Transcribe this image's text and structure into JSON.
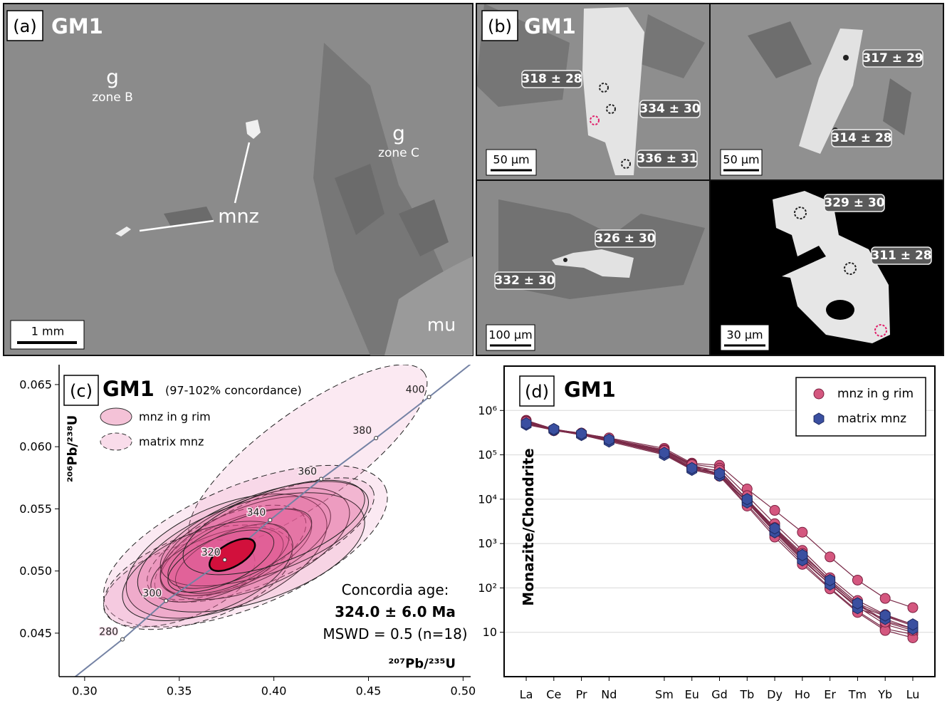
{
  "panel_a": {
    "label": "(a)",
    "sample": "GM1",
    "annotations": [
      "g",
      "zone B",
      "g",
      "zone C",
      "mnz",
      "mu"
    ],
    "scale_bar": "1 mm"
  },
  "panel_b": {
    "label": "(b)",
    "sample": "GM1",
    "images": [
      {
        "ages": [
          "318 ± 28",
          "334 ± 30",
          "336 ± 31"
        ],
        "scale_bar": "50 µm"
      },
      {
        "ages": [
          "317 ± 29",
          "314 ± 28"
        ],
        "scale_bar": "50 µm"
      },
      {
        "ages": [
          "326 ± 30",
          "332 ± 30"
        ],
        "scale_bar": "100 µm"
      },
      {
        "ages": [
          "329 ± 30",
          "311 ± 28"
        ],
        "scale_bar": "30 µm"
      }
    ]
  },
  "chart_data": [
    {
      "type": "concordia",
      "panel_label": "(c)",
      "title": "GM1",
      "subtitle": "(97-102% concordance)",
      "x_label": "²⁰⁷Pb/²³⁵U",
      "y_label": "²⁰⁶Pb/²³⁸U",
      "xlim": [
        0.2865,
        0.504
      ],
      "ylim": [
        0.0415,
        0.0666
      ],
      "xticks": [
        {
          "value": 0.3,
          "label": "0.30"
        },
        {
          "value": 0.35,
          "label": "0.35"
        },
        {
          "value": 0.4,
          "label": "0.40"
        },
        {
          "value": 0.45,
          "label": "0.45"
        },
        {
          "value": 0.5,
          "label": "0.50"
        }
      ],
      "yticks": [
        0.045,
        {
          "value": 0.05,
          "label": "0.050"
        },
        {
          "value": 0.055,
          "label": "0.055"
        },
        {
          "value": 0.06,
          "label": "0.060"
        },
        0.065
      ],
      "legend": "upper left",
      "series": [
        {
          "name": "mnz in g rim",
          "color": "#e0508c",
          "line_style": "solid",
          "x": [
            0.38,
            0.375,
            0.385,
            0.37,
            0.39,
            0.378,
            0.395,
            0.365,
            0.382,
            0.388,
            0.372,
            0.4
          ],
          "y": [
            0.0515,
            0.0512,
            0.052,
            0.0505,
            0.0522,
            0.051,
            0.053,
            0.05,
            0.0518,
            0.0515,
            0.0508,
            0.0535
          ],
          "sx": [
            0.04,
            0.053,
            0.045,
            0.035,
            0.05,
            0.03,
            0.055,
            0.045,
            0.038,
            0.06,
            0.028,
            0.048
          ],
          "sy": [
            0.0035,
            0.005,
            0.004,
            0.003,
            0.0045,
            0.0028,
            0.0042,
            0.004,
            0.0032,
            0.0048,
            0.0025,
            0.0038
          ],
          "rho": [
            0.6,
            0.5,
            0.6,
            0.55,
            0.55,
            0.6,
            0.6,
            0.5,
            0.65,
            0.5,
            0.6,
            0.6
          ]
        },
        {
          "name": "matrix mnz",
          "color": "#ee9cc2",
          "line_style": "dashed",
          "x": [
            0.418,
            0.385,
            0.35,
            0.395,
            0.375,
            0.36
          ],
          "y": [
            0.0592,
            0.052,
            0.049,
            0.0525,
            0.0515,
            0.0495
          ],
          "sx": [
            0.063,
            0.075,
            0.04,
            0.058,
            0.042,
            0.05
          ],
          "sy": [
            0.0074,
            0.0065,
            0.0035,
            0.005,
            0.0038,
            0.0042
          ],
          "rho": [
            0.8,
            0.6,
            0.5,
            0.7,
            0.6,
            0.5
          ]
        }
      ],
      "mean_ellipse": {
        "color": "#d2103c",
        "x": 0.378,
        "y": 0.0513,
        "sx": 0.012,
        "sy": 0.0013,
        "rho": 0.6
      },
      "concordia": {
        "color": "#7482a4",
        "ages": [
          280,
          300,
          320,
          340,
          360,
          380,
          400
        ],
        "x": [
          0.32,
          0.343,
          0.374,
          0.398,
          0.425,
          0.454,
          0.482
        ],
        "y": [
          0.0445,
          0.0476,
          0.0509,
          0.0541,
          0.0574,
          0.0607,
          0.064
        ]
      },
      "annotations": [
        "Concordia age:",
        "324.0 ± 6.0 Ma",
        "MSWD = 0.5 (n=18)"
      ]
    },
    {
      "type": "line",
      "panel_label": "(d)",
      "title": "GM1",
      "y_label": "Monazite/Chondrite",
      "x": [
        57,
        58,
        59,
        60,
        62,
        63,
        64,
        65,
        66,
        67,
        68,
        69,
        70,
        71
      ],
      "xticks": [
        {
          "value": 57,
          "label": "La"
        },
        {
          "value": 58,
          "label": "Ce"
        },
        {
          "value": 59,
          "label": "Pr"
        },
        {
          "value": 60,
          "label": "Nd"
        },
        {
          "value": 62,
          "label": "Sm"
        },
        {
          "value": 63,
          "label": "Eu"
        },
        {
          "value": 64,
          "label": "Gd"
        },
        {
          "value": 65,
          "label": "Tb"
        },
        {
          "value": 66,
          "label": "Dy"
        },
        {
          "value": 67,
          "label": "Ho"
        },
        {
          "value": 68,
          "label": "Er"
        },
        {
          "value": 69,
          "label": "Tm"
        },
        {
          "value": 70,
          "label": "Yb"
        },
        {
          "value": 71,
          "label": "Lu"
        }
      ],
      "xlim": [
        56.2,
        71.8
      ],
      "ylim": [
        1,
        10000000
      ],
      "log_y": true,
      "grid": true,
      "legend": "upper right",
      "yticks": [
        10,
        {
          "value": 100,
          "label": "10²"
        },
        {
          "value": 1000,
          "label": "10³"
        },
        {
          "value": 10000,
          "label": "10⁴"
        },
        {
          "value": 100000,
          "label": "10⁵"
        },
        {
          "value": 1000000,
          "label": "10⁶"
        }
      ],
      "series": [
        {
          "name": "mnz in g rim",
          "color": "#d4577f",
          "marker": "circle",
          "values": [
            [
              600000,
              380000,
              300000,
              240000,
              140000,
              65000,
              58000,
              17000,
              5600,
              1800,
              500,
              150,
              58,
              36
            ],
            [
              580000,
              370000,
              310000,
              230000,
              130000,
              62000,
              50000,
              12000,
              2800,
              700,
              170,
              52,
              25,
              15
            ],
            [
              560000,
              360000,
              290000,
              220000,
              120000,
              58000,
              42000,
              10000,
              2300,
              600,
              150,
              45,
              18,
              12
            ],
            [
              550000,
              370000,
              300000,
              230000,
              115000,
              55000,
              38000,
              8500,
              1900,
              450,
              120,
              38,
              15,
              10
            ],
            [
              570000,
              360000,
              280000,
              210000,
              110000,
              52000,
              35000,
              7500,
              1600,
              380,
              100,
              30,
              12,
              9
            ],
            [
              540000,
              350000,
              290000,
              220000,
              125000,
              60000,
              33000,
              7000,
              1400,
              340,
              95,
              28,
              11,
              7.5
            ],
            [
              560000,
              370000,
              300000,
              240000,
              105000,
              50000,
              45000,
              9500,
              2100,
              520,
              130,
              42,
              17,
              11
            ]
          ]
        },
        {
          "name": "matrix mnz",
          "color": "#3a4fa0",
          "marker": "hexagon",
          "values": [
            [
              500000,
              370000,
              290000,
              210000,
              105000,
              48000,
              36000,
              9000,
              2000,
              480,
              140,
              40,
              23,
              14
            ],
            [
              480000,
              360000,
              280000,
              200000,
              100000,
              46000,
              34000,
              8500,
              1800,
              420,
              120,
              35,
              20,
              12
            ],
            [
              510000,
              380000,
              300000,
              220000,
              110000,
              50000,
              38000,
              10000,
              2200,
              550,
              150,
              45,
              24,
              15
            ]
          ]
        }
      ]
    }
  ]
}
